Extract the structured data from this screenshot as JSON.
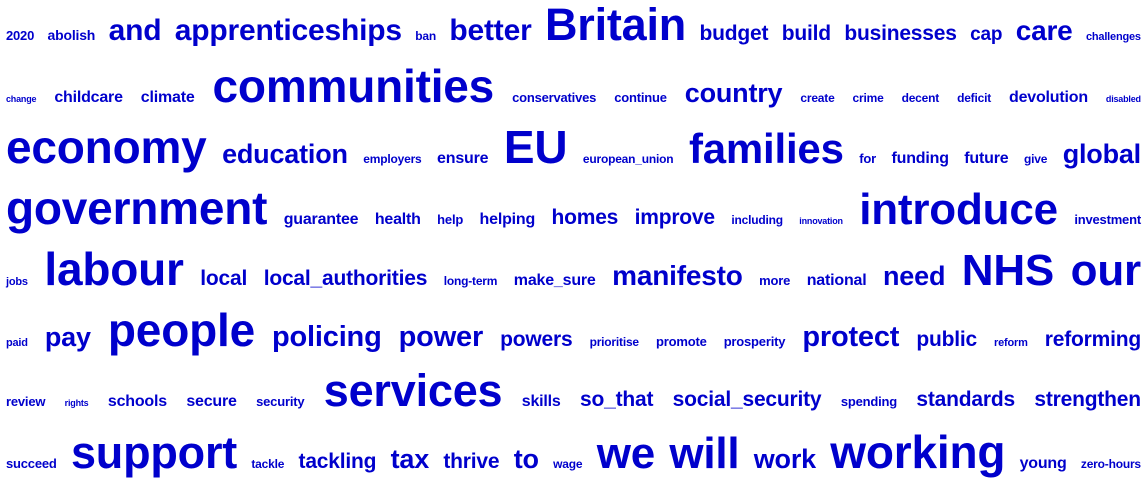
{
  "cloud": {
    "color": "#0000cc",
    "rows": [
      [
        {
          "t": "2020",
          "s": 13
        },
        {
          "t": "abolish",
          "s": 14
        },
        {
          "t": "and",
          "s": 30
        },
        {
          "t": "apprenticeships",
          "s": 30
        },
        {
          "t": "ban",
          "s": 12
        },
        {
          "t": "better",
          "s": 30
        },
        {
          "t": "Britain",
          "s": 45
        },
        {
          "t": "budget",
          "s": 21
        },
        {
          "t": "build",
          "s": 21
        },
        {
          "t": "businesses",
          "s": 21
        },
        {
          "t": "cap",
          "s": 19
        },
        {
          "t": "care",
          "s": 28
        },
        {
          "t": "challenges",
          "s": 11
        }
      ],
      [
        {
          "t": "change",
          "s": 9
        },
        {
          "t": "childcare",
          "s": 16
        },
        {
          "t": "climate",
          "s": 16
        },
        {
          "t": "communities",
          "s": 46
        },
        {
          "t": "conservatives",
          "s": 13
        },
        {
          "t": "continue",
          "s": 13
        },
        {
          "t": "country",
          "s": 27
        },
        {
          "t": "create",
          "s": 12
        },
        {
          "t": "crime",
          "s": 12
        },
        {
          "t": "decent",
          "s": 12
        },
        {
          "t": "deficit",
          "s": 12
        },
        {
          "t": "devolution",
          "s": 16
        },
        {
          "t": "disabled",
          "s": 9
        }
      ],
      [
        {
          "t": "economy",
          "s": 46
        },
        {
          "t": "education",
          "s": 27
        },
        {
          "t": "employers",
          "s": 12
        },
        {
          "t": "ensure",
          "s": 16
        },
        {
          "t": "EU",
          "s": 46
        },
        {
          "t": "european_union",
          "s": 12
        },
        {
          "t": "families",
          "s": 42
        },
        {
          "t": "for",
          "s": 13
        },
        {
          "t": "funding",
          "s": 16
        },
        {
          "t": "future",
          "s": 16
        },
        {
          "t": "give",
          "s": 12
        },
        {
          "t": "global",
          "s": 27
        }
      ],
      [
        {
          "t": "government",
          "s": 46
        },
        {
          "t": "guarantee",
          "s": 16
        },
        {
          "t": "health",
          "s": 16
        },
        {
          "t": "help",
          "s": 13
        },
        {
          "t": "helping",
          "s": 16
        },
        {
          "t": "homes",
          "s": 21
        },
        {
          "t": "improve",
          "s": 21
        },
        {
          "t": "including",
          "s": 12
        },
        {
          "t": "innovation",
          "s": 9
        },
        {
          "t": "introduce",
          "s": 44
        },
        {
          "t": "investment",
          "s": 13
        }
      ],
      [
        {
          "t": "jobs",
          "s": 11
        },
        {
          "t": "labour",
          "s": 46
        },
        {
          "t": "local",
          "s": 21
        },
        {
          "t": "local_authorities",
          "s": 21
        },
        {
          "t": "long-term",
          "s": 12
        },
        {
          "t": "make_sure",
          "s": 16
        },
        {
          "t": "manifesto",
          "s": 28
        },
        {
          "t": "more",
          "s": 13
        },
        {
          "t": "national",
          "s": 16
        },
        {
          "t": "need",
          "s": 27
        },
        {
          "t": "NHS",
          "s": 44
        },
        {
          "t": "our",
          "s": 44
        }
      ],
      [
        {
          "t": "paid",
          "s": 11
        },
        {
          "t": "pay",
          "s": 27
        },
        {
          "t": "people",
          "s": 46
        },
        {
          "t": "policing",
          "s": 29
        },
        {
          "t": "power",
          "s": 29
        },
        {
          "t": "powers",
          "s": 21
        },
        {
          "t": "prioritise",
          "s": 12
        },
        {
          "t": "promote",
          "s": 13
        },
        {
          "t": "prosperity",
          "s": 13
        },
        {
          "t": "protect",
          "s": 29
        },
        {
          "t": "public",
          "s": 21
        },
        {
          "t": "reform",
          "s": 11
        },
        {
          "t": "reforming",
          "s": 21
        }
      ],
      [
        {
          "t": "review",
          "s": 13
        },
        {
          "t": "rights",
          "s": 9
        },
        {
          "t": "schools",
          "s": 16
        },
        {
          "t": "secure",
          "s": 16
        },
        {
          "t": "security",
          "s": 13
        },
        {
          "t": "services",
          "s": 45
        },
        {
          "t": "skills",
          "s": 16
        },
        {
          "t": "so_that",
          "s": 21
        },
        {
          "t": "social_security",
          "s": 21
        },
        {
          "t": "spending",
          "s": 13
        },
        {
          "t": "standards",
          "s": 21
        },
        {
          "t": "strengthen",
          "s": 21
        }
      ],
      [
        {
          "t": "succeed",
          "s": 13
        },
        {
          "t": "support",
          "s": 45
        },
        {
          "t": "tackle",
          "s": 12
        },
        {
          "t": "tackling",
          "s": 21
        },
        {
          "t": "tax",
          "s": 27
        },
        {
          "t": "thrive",
          "s": 21
        },
        {
          "t": "to",
          "s": 27
        },
        {
          "t": "wage",
          "s": 12
        },
        {
          "t": "we",
          "s": 44
        },
        {
          "t": "will",
          "s": 44
        },
        {
          "t": "work",
          "s": 27
        },
        {
          "t": "working",
          "s": 46
        },
        {
          "t": "young",
          "s": 16
        },
        {
          "t": "zero-hours",
          "s": 12
        }
      ]
    ]
  }
}
